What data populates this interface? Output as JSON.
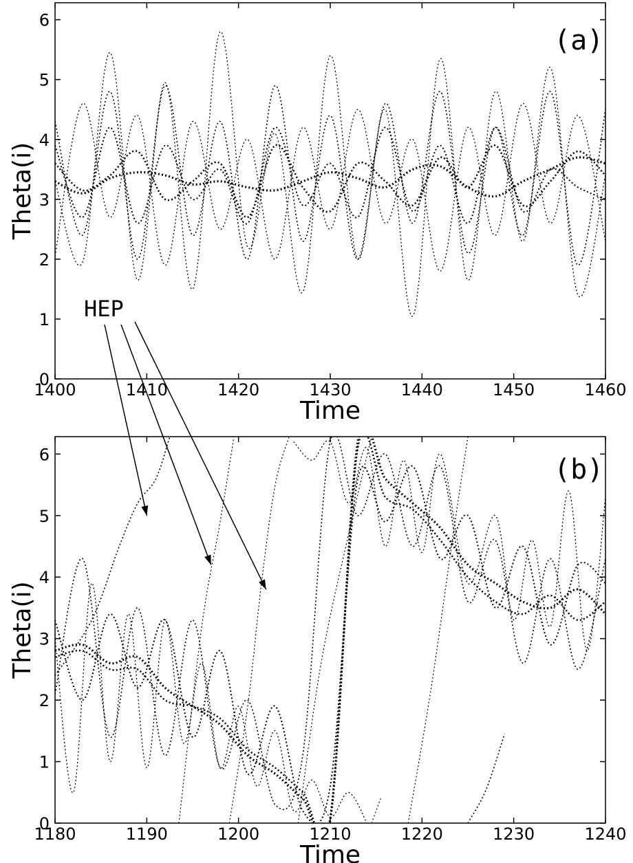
{
  "chart_data": [
    {
      "type": "line",
      "panel_label": "(a)",
      "xlabel": "Time",
      "ylabel": "Theta(i)",
      "xlim": [
        1400,
        1460
      ],
      "ylim": [
        0,
        6.283
      ],
      "xticks": [
        "1400",
        "1410",
        "1420",
        "1430",
        "1440",
        "1450",
        "1460"
      ],
      "yticks": [
        "0",
        "1",
        "2",
        "3",
        "4",
        "5",
        "6"
      ],
      "grid": false,
      "marker": "+",
      "series": [
        {
          "x": [
            1400,
            1403,
            1406,
            1409,
            1412,
            1415,
            1418,
            1421,
            1424,
            1427,
            1430,
            1433,
            1436,
            1439,
            1442,
            1445,
            1448,
            1451,
            1454,
            1457,
            1460
          ],
          "values": [
            3.3,
            3.1,
            3.35,
            3.45,
            3.4,
            3.25,
            3.3,
            3.2,
            3.15,
            3.3,
            3.45,
            3.35,
            3.2,
            3.5,
            3.55,
            3.2,
            3.05,
            3.3,
            3.5,
            3.7,
            3.6
          ],
          "weight": 3.2
        },
        {
          "x": [
            1400,
            1403,
            1406,
            1409,
            1412,
            1415,
            1418,
            1421,
            1424,
            1427,
            1430,
            1433,
            1436,
            1439,
            1442,
            1445,
            1448,
            1451,
            1454,
            1457,
            1460
          ],
          "values": [
            3.6,
            3.15,
            3.4,
            3.8,
            3.0,
            3.3,
            3.6,
            2.7,
            3.9,
            3.2,
            2.8,
            3.6,
            3.3,
            2.9,
            3.7,
            3.2,
            3.9,
            2.9,
            3.3,
            3.8,
            3.4
          ],
          "weight": 2.6
        },
        {
          "x": [
            1400,
            1403,
            1406,
            1409,
            1412,
            1415,
            1418,
            1421,
            1424,
            1427,
            1430,
            1433,
            1436,
            1439,
            1442,
            1445,
            1448,
            1451,
            1454,
            1457,
            1460
          ],
          "values": [
            3.9,
            2.7,
            4.2,
            2.6,
            3.9,
            3.0,
            3.5,
            2.6,
            4.2,
            2.9,
            3.6,
            2.7,
            4.2,
            2.8,
            3.9,
            2.6,
            4.2,
            2.8,
            3.5,
            3.2,
            3.0
          ],
          "weight": 2.0
        },
        {
          "x": [
            1400,
            1403,
            1406,
            1409,
            1412,
            1415,
            1418,
            1421,
            1424,
            1427,
            1430,
            1433,
            1436,
            1439,
            1442,
            1445,
            1448,
            1451,
            1454,
            1457,
            1460
          ],
          "values": [
            4.3,
            2.4,
            4.8,
            2.0,
            4.9,
            2.4,
            4.3,
            2.0,
            4.9,
            2.3,
            4.4,
            2.0,
            4.6,
            2.6,
            4.8,
            2.1,
            4.2,
            2.4,
            4.8,
            1.9,
            4.5
          ],
          "weight": 1.6
        },
        {
          "x": [
            1400,
            1403,
            1406,
            1409,
            1412,
            1415,
            1418,
            1421,
            1424,
            1427,
            1430,
            1433,
            1436,
            1439,
            1442,
            1445,
            1448,
            1451,
            1454,
            1457,
            1460
          ],
          "values": [
            3.3,
            1.95,
            5.45,
            1.65,
            4.95,
            1.5,
            5.8,
            2.2,
            4.1,
            1.45,
            5.4,
            2.0,
            4.5,
            1.05,
            5.35,
            1.65,
            4.8,
            2.3,
            5.2,
            1.4,
            3.4
          ],
          "weight": 1.3
        },
        {
          "x": [
            1400,
            1403,
            1406,
            1409,
            1412,
            1415,
            1418,
            1421,
            1424,
            1427,
            1430,
            1433,
            1436,
            1439,
            1442,
            1445,
            1448,
            1451,
            1454,
            1457,
            1460
          ],
          "values": [
            2.05,
            4.6,
            2.7,
            4.4,
            1.9,
            4.3,
            2.5,
            4.0,
            2.0,
            4.2,
            2.5,
            4.5,
            2.6,
            4.0,
            1.8,
            4.2,
            2.4,
            4.6,
            2.6,
            4.4,
            2.3
          ],
          "weight": 1.3
        }
      ]
    },
    {
      "type": "line",
      "panel_label": "(b)",
      "xlabel": "Time",
      "ylabel": "Theta(i)",
      "xlim": [
        1180,
        1240
      ],
      "ylim": [
        0,
        6.283
      ],
      "xticks": [
        "1180",
        "1190",
        "1200",
        "1210",
        "1220",
        "1230",
        "1240"
      ],
      "yticks": [
        "0",
        "1",
        "2",
        "3",
        "4",
        "5",
        "6"
      ],
      "grid": false,
      "marker": "+",
      "annotation": {
        "text": "HEP",
        "arrow_targets": [
          [
            1190,
            5.0
          ],
          [
            1197,
            4.2
          ],
          [
            1203,
            3.8
          ]
        ]
      },
      "series": [
        {
          "x": [
            1180,
            1183,
            1186,
            1189,
            1192,
            1195,
            1198,
            1201,
            1204,
            1207,
            1210,
            1213,
            1216,
            1219,
            1222,
            1225,
            1228,
            1231,
            1234,
            1237,
            1240
          ],
          "values": [
            2.8,
            2.9,
            2.6,
            2.7,
            2.2,
            1.9,
            1.6,
            1.1,
            0.8,
            0.4,
            0.05,
            6.2,
            5.6,
            5.2,
            4.8,
            4.2,
            3.9,
            3.6,
            3.5,
            3.8,
            3.4
          ],
          "weight": 3.2
        },
        {
          "x": [
            1180,
            1183,
            1186,
            1189,
            1192,
            1195,
            1198,
            1201,
            1204,
            1207,
            1210,
            1213,
            1216,
            1219,
            1222,
            1225,
            1228,
            1231,
            1234,
            1237,
            1240
          ],
          "values": [
            2.7,
            2.8,
            2.5,
            2.5,
            2.0,
            1.9,
            1.7,
            1.2,
            0.9,
            0.5,
            0.1,
            6.1,
            5.3,
            5.1,
            4.6,
            4.0,
            3.6,
            3.4,
            3.7,
            3.3,
            3.6
          ],
          "weight": 2.6
        },
        {
          "x": [
            1180,
            1183,
            1186,
            1189,
            1192,
            1195,
            1198,
            1201,
            1204,
            1207,
            1210,
            1213,
            1216,
            1219,
            1222,
            1225,
            1228,
            1231,
            1234,
            1237,
            1240
          ],
          "values": [
            3.3,
            2.0,
            3.4,
            2.2,
            3.3,
            1.4,
            2.8,
            0.8,
            1.9,
            0.2,
            0.6,
            5.6,
            4.9,
            5.8,
            4.3,
            5.0,
            3.5,
            4.5,
            2.9,
            4.2,
            3.9
          ],
          "weight": 2.0
        },
        {
          "x": [
            1180,
            1183,
            1186,
            1189,
            1192,
            1195,
            1198,
            1201,
            1204,
            1207,
            1210,
            1213,
            1216,
            1219,
            1222,
            1225,
            1228,
            1231,
            1234,
            1237,
            1240
          ],
          "values": [
            2.1,
            4.3,
            1.4,
            3.5,
            1.1,
            3.3,
            0.9,
            2.0,
            0.3,
            1.1,
            6.2,
            5.0,
            6.0,
            4.5,
            5.8,
            3.6,
            4.6,
            2.6,
            4.3,
            2.5,
            4.3
          ],
          "weight": 1.6
        },
        {
          "x": [
            1180,
            1182,
            1184,
            1186,
            1188,
            1190,
            1192,
            1194,
            1196,
            1198,
            1200,
            1202,
            1204,
            1206,
            1208,
            1210,
            1212,
            1214
          ],
          "values": [
            3.0,
            0.5,
            3.9,
            1.0,
            3.4,
            0.9,
            3.3,
            1.3,
            2.6,
            0.9,
            1.9,
            0.6,
            1.5,
            0.2,
            0.7,
            0.1,
            0.5,
            0.0
          ],
          "weight": 1.3
        },
        {
          "x": [
            1180,
            1184,
            1187,
            1189,
            1191,
            1192.5
          ],
          "values": [
            2.4,
            3.3,
            4.5,
            5.2,
            5.6,
            6.28
          ],
          "weight": 1.6
        },
        {
          "x": [
            1193.5,
            1196,
            1198,
            1199.5
          ],
          "values": [
            0.0,
            3.2,
            4.9,
            6.28
          ],
          "weight": 1.2
        },
        {
          "x": [
            1199,
            1201,
            1202.5,
            1204,
            1205.5
          ],
          "values": [
            0.0,
            1.9,
            3.9,
            5.5,
            6.28
          ],
          "weight": 1.2
        },
        {
          "x": [
            1206,
            1208,
            1210,
            1212,
            1214,
            1216,
            1218,
            1220,
            1222,
            1225,
            1228,
            1230,
            1232,
            1234,
            1236,
            1238,
            1240
          ],
          "values": [
            6.2,
            5.9,
            6.2,
            5.2,
            6.1,
            4.5,
            5.9,
            4.4,
            6.0,
            3.9,
            5.0,
            3.3,
            4.6,
            3.2,
            5.4,
            2.8,
            5.3
          ],
          "weight": 1.3
        },
        {
          "x": [
            1206.5,
            1209,
            1212,
            1214.5
          ],
          "values": [
            0.0,
            2.6,
            4.7,
            6.28
          ],
          "weight": 1.2
        },
        {
          "x": [
            1214.5,
            1215.5
          ],
          "values": [
            0.0,
            0.4
          ],
          "weight": 1.2
        },
        {
          "x": [
            1218.5,
            1221,
            1223.5,
            1225
          ],
          "values": [
            0.0,
            2.2,
            4.8,
            6.28
          ],
          "weight": 1.2
        },
        {
          "x": [
            1225,
            1227,
            1229
          ],
          "values": [
            0.0,
            0.55,
            1.45
          ],
          "weight": 1.6
        }
      ]
    }
  ]
}
